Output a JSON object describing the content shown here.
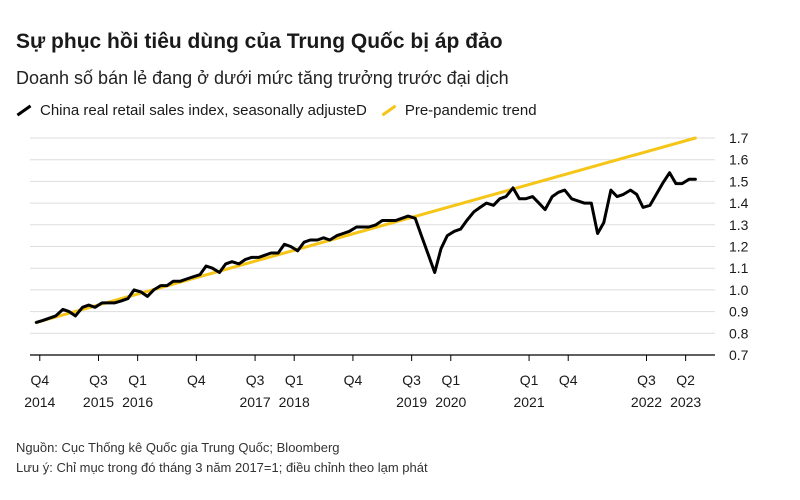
{
  "header": {
    "title": "Sự phục hồi tiêu dùng của Trung Quốc bị áp đảo",
    "subtitle": "Doanh số bán lẻ đang ở dưới mức tăng trưởng trước đại dịch"
  },
  "footer": {
    "source": "Nguồn: Cục Thống kê Quốc gia Trung Quốc; Bloomberg",
    "note": "Lưu ý: Chỉ mục trong đó tháng 3 năm 2017=1; điều chỉnh theo lạm phát"
  },
  "colors": {
    "retail": "#000000",
    "trend": "#f5c518",
    "grid": "#dddddd"
  },
  "chart_data": {
    "type": "line",
    "ylim": [
      0.7,
      1.7
    ],
    "yticks": [
      0.7,
      0.8,
      0.9,
      1.0,
      1.1,
      1.2,
      1.3,
      1.4,
      1.5,
      1.6,
      1.7
    ],
    "ytick_labels": [
      "0.7",
      "0.8",
      "0.9",
      "1.0",
      "1.1",
      "1.2",
      "1.3",
      "1.4",
      "1.5",
      "1.6",
      "1.7"
    ],
    "xlim": [
      2014.75,
      2023.5
    ],
    "xticks": [
      {
        "x": 2014.875,
        "q": "Q4",
        "y": "2014"
      },
      {
        "x": 2015.625,
        "q": "Q3",
        "y": "2015"
      },
      {
        "x": 2016.125,
        "q": "Q1",
        "y": "2016"
      },
      {
        "x": 2016.875,
        "q": "Q4",
        "y": ""
      },
      {
        "x": 2017.625,
        "q": "Q3",
        "y": "2017"
      },
      {
        "x": 2018.125,
        "q": "Q1",
        "y": "2018"
      },
      {
        "x": 2018.875,
        "q": "Q4",
        "y": ""
      },
      {
        "x": 2019.625,
        "q": "Q3",
        "y": "2019"
      },
      {
        "x": 2020.125,
        "q": "Q1",
        "y": "2020"
      },
      {
        "x": 2021.125,
        "q": "Q1",
        "y": "2021"
      },
      {
        "x": 2021.625,
        "q": "Q4",
        "y": ""
      },
      {
        "x": 2022.625,
        "q": "Q3",
        "y": "2022"
      },
      {
        "x": 2023.125,
        "q": "Q2",
        "y": "2023"
      }
    ],
    "grid": true,
    "legend": "top-left",
    "series": [
      {
        "name": "China real retail sales index, seasonally adjusteD",
        "color": "#000000",
        "x": [
          2014.83,
          2014.92,
          2015.0,
          2015.08,
          2015.17,
          2015.25,
          2015.33,
          2015.42,
          2015.5,
          2015.58,
          2015.67,
          2015.75,
          2015.83,
          2015.92,
          2016.0,
          2016.08,
          2016.17,
          2016.25,
          2016.33,
          2016.42,
          2016.5,
          2016.58,
          2016.67,
          2016.75,
          2016.83,
          2016.92,
          2017.0,
          2017.08,
          2017.17,
          2017.25,
          2017.33,
          2017.42,
          2017.5,
          2017.58,
          2017.67,
          2017.75,
          2017.83,
          2017.92,
          2018.0,
          2018.08,
          2018.17,
          2018.25,
          2018.33,
          2018.42,
          2018.5,
          2018.58,
          2018.67,
          2018.75,
          2018.83,
          2018.92,
          2019.0,
          2019.08,
          2019.17,
          2019.25,
          2019.33,
          2019.42,
          2019.5,
          2019.58,
          2019.67,
          2019.75,
          2019.83,
          2019.92,
          2020.0,
          2020.08,
          2020.17,
          2020.25,
          2020.33,
          2020.42,
          2020.5,
          2020.58,
          2020.67,
          2020.75,
          2020.83,
          2020.92,
          2021.0,
          2021.08,
          2021.17,
          2021.25,
          2021.33,
          2021.42,
          2021.5,
          2021.58,
          2021.67,
          2021.75,
          2021.83,
          2021.92,
          2022.0,
          2022.08,
          2022.17,
          2022.25,
          2022.33,
          2022.42,
          2022.5,
          2022.58,
          2022.67,
          2022.75,
          2022.83,
          2022.92,
          2023.0,
          2023.08,
          2023.17,
          2023.25
        ],
        "y": [
          0.85,
          0.86,
          0.87,
          0.88,
          0.91,
          0.9,
          0.88,
          0.92,
          0.93,
          0.92,
          0.94,
          0.94,
          0.94,
          0.95,
          0.96,
          1.0,
          0.99,
          0.97,
          1.0,
          1.02,
          1.02,
          1.04,
          1.04,
          1.05,
          1.06,
          1.07,
          1.11,
          1.1,
          1.08,
          1.12,
          1.13,
          1.12,
          1.14,
          1.15,
          1.15,
          1.16,
          1.17,
          1.17,
          1.21,
          1.2,
          1.18,
          1.22,
          1.23,
          1.23,
          1.24,
          1.23,
          1.25,
          1.26,
          1.27,
          1.29,
          1.29,
          1.29,
          1.3,
          1.32,
          1.32,
          1.32,
          1.33,
          1.34,
          1.33,
          1.25,
          1.17,
          1.08,
          1.19,
          1.25,
          1.27,
          1.28,
          1.32,
          1.36,
          1.38,
          1.4,
          1.39,
          1.42,
          1.43,
          1.47,
          1.42,
          1.42,
          1.43,
          1.4,
          1.37,
          1.43,
          1.45,
          1.46,
          1.42,
          1.41,
          1.4,
          1.4,
          1.26,
          1.31,
          1.46,
          1.43,
          1.44,
          1.46,
          1.44,
          1.38,
          1.39,
          1.44,
          1.49,
          1.54,
          1.49,
          1.49,
          1.51,
          1.51
        ]
      },
      {
        "name": "Pre-pandemic trend",
        "color": "#f5c518",
        "x": [
          2014.83,
          2023.25
        ],
        "y": [
          0.85,
          1.7
        ]
      }
    ]
  }
}
